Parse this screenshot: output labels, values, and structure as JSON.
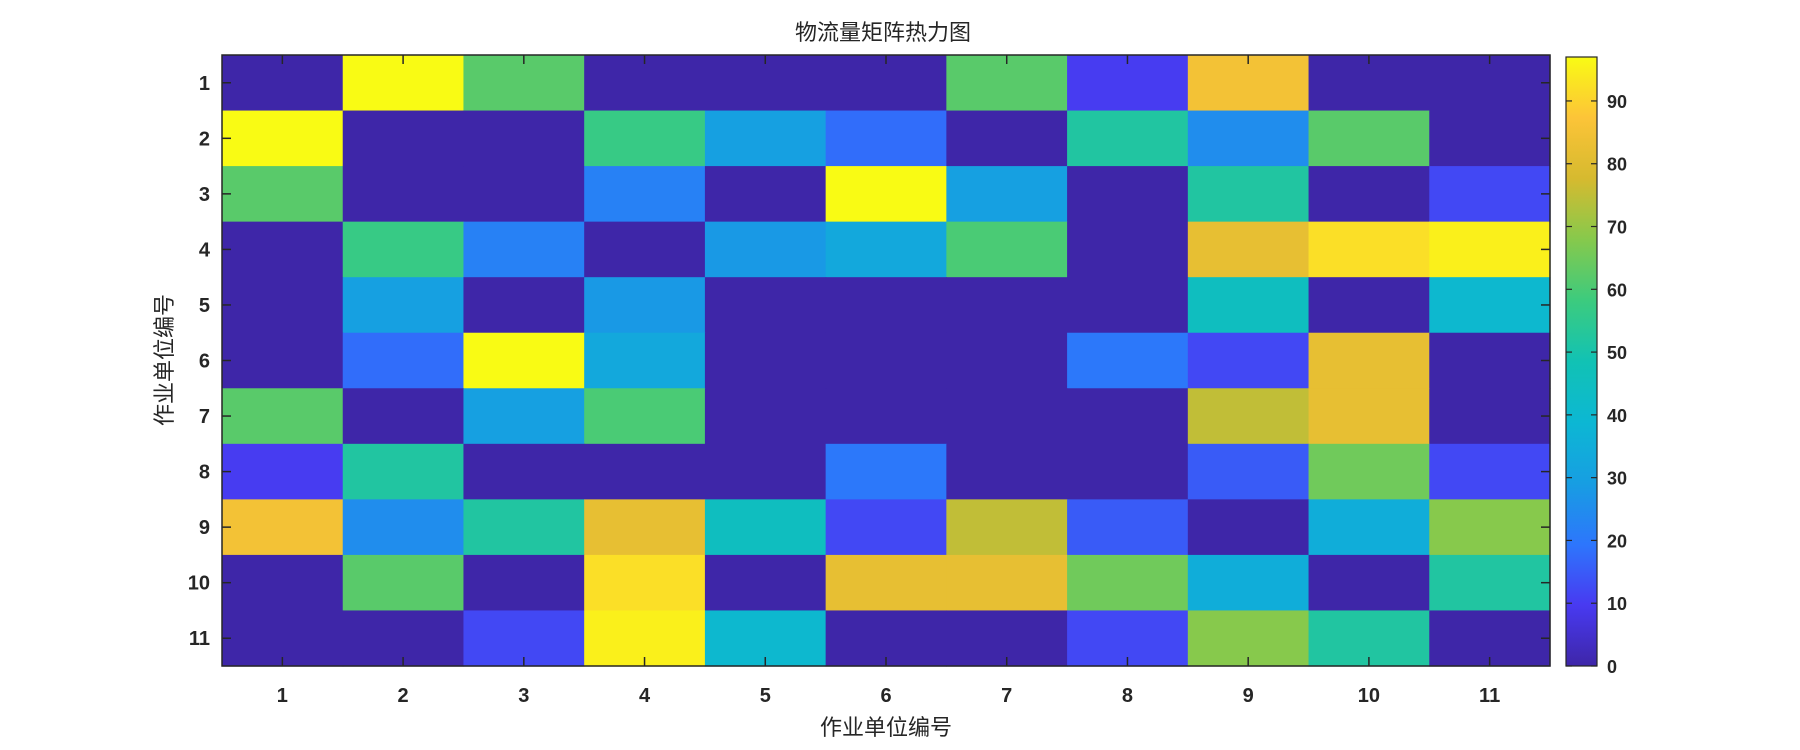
{
  "chart_data": {
    "type": "heatmap",
    "title": "物流量矩阵热力图",
    "xlabel": "作业单位编号",
    "ylabel": "作业单位编号",
    "x_categories": [
      "1",
      "2",
      "3",
      "4",
      "5",
      "6",
      "7",
      "8",
      "9",
      "10",
      "11"
    ],
    "y_categories": [
      "1",
      "2",
      "3",
      "4",
      "5",
      "6",
      "7",
      "8",
      "9",
      "10",
      "11"
    ],
    "values": [
      [
        0,
        97,
        62,
        0,
        0,
        0,
        62,
        10,
        85,
        0,
        0
      ],
      [
        97,
        0,
        0,
        57,
        30,
        18,
        0,
        52,
        25,
        62,
        0
      ],
      [
        62,
        0,
        0,
        22,
        0,
        97,
        30,
        0,
        52,
        0,
        12
      ],
      [
        0,
        57,
        22,
        0,
        28,
        33,
        60,
        0,
        82,
        92,
        95
      ],
      [
        0,
        30,
        0,
        28,
        0,
        0,
        0,
        0,
        45,
        0,
        40
      ],
      [
        0,
        18,
        97,
        33,
        0,
        0,
        0,
        20,
        12,
        82,
        0
      ],
      [
        62,
        0,
        30,
        60,
        0,
        0,
        0,
        0,
        75,
        82,
        0
      ],
      [
        10,
        52,
        0,
        0,
        0,
        20,
        0,
        0,
        15,
        65,
        12
      ],
      [
        85,
        25,
        52,
        82,
        45,
        12,
        75,
        15,
        0,
        35,
        68
      ],
      [
        0,
        62,
        0,
        92,
        0,
        82,
        82,
        65,
        35,
        0,
        52
      ],
      [
        0,
        0,
        12,
        95,
        40,
        0,
        0,
        12,
        68,
        52,
        0
      ]
    ],
    "colormap": "parula",
    "clim": [
      0,
      97
    ],
    "colorbar_ticks": [
      0,
      10,
      20,
      30,
      40,
      50,
      60,
      70,
      80,
      90
    ],
    "colorbar_position": "right",
    "grid": false
  }
}
